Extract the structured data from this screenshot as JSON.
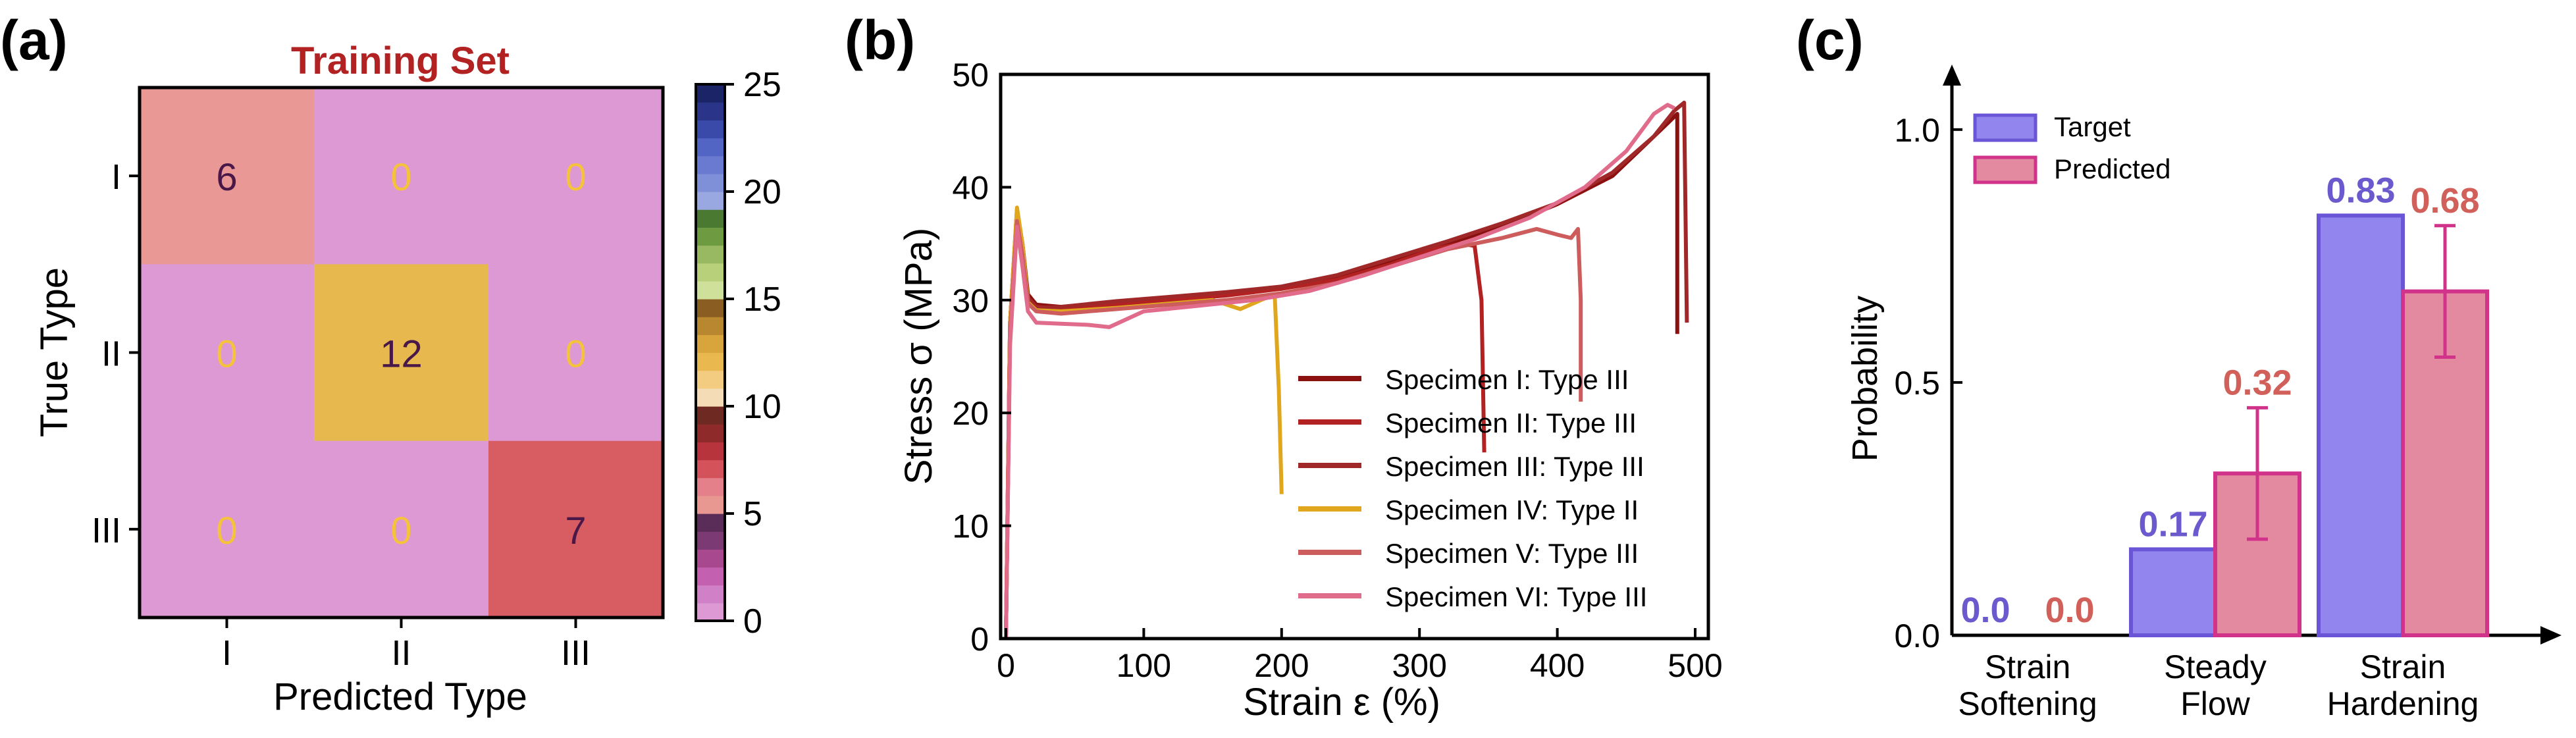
{
  "chart_data": [
    {
      "panel_label": "(a)",
      "type": "heatmap",
      "title": "Training Set",
      "xlabel": "Predicted Type",
      "ylabel": "True Type",
      "x_categories": [
        "I",
        "II",
        "III"
      ],
      "y_categories": [
        "I",
        "II",
        "III"
      ],
      "values": [
        [
          6,
          0,
          0
        ],
        [
          0,
          12,
          0
        ],
        [
          0,
          0,
          7
        ]
      ],
      "colorbar": {
        "range": [
          0,
          25
        ],
        "ticks": [
          "0",
          "5",
          "10",
          "15",
          "20",
          "25"
        ]
      },
      "cell_text_colors": {
        "light": "#f5c33b",
        "dark": "#4a1848"
      }
    },
    {
      "panel_label": "(b)",
      "type": "line",
      "xlabel": "Strain ε (%)",
      "ylabel": "Stress σ (MPa)",
      "xlim": [
        0,
        500
      ],
      "ylim": [
        0,
        50
      ],
      "xticks": [
        "0",
        "100",
        "200",
        "300",
        "400",
        "500"
      ],
      "yticks": [
        "0",
        "10",
        "20",
        "30",
        "40",
        "50"
      ],
      "legend_position": "lower-right",
      "series": [
        {
          "name": "Specimen I: Type III",
          "color": "#8b1010",
          "x": [
            0,
            3,
            8,
            12,
            16,
            22,
            40,
            80,
            120,
            160,
            200,
            240,
            280,
            320,
            360,
            400,
            440,
            470,
            487,
            487
          ],
          "y": [
            0,
            28,
            37.5,
            35,
            30.5,
            29.6,
            29.4,
            29.8,
            30.2,
            30.6,
            31,
            32,
            33.5,
            35,
            36.5,
            38.5,
            41,
            44.5,
            46.5,
            27
          ]
        },
        {
          "name": "Specimen II: Type III",
          "color": "#b22222",
          "x": [
            0,
            3,
            8,
            12,
            16,
            22,
            40,
            80,
            120,
            160,
            200,
            240,
            280,
            310,
            330,
            340,
            345,
            347
          ],
          "y": [
            0,
            28,
            37.8,
            34.5,
            30.2,
            29.4,
            29.2,
            29.6,
            30,
            30.4,
            31,
            31.8,
            33.2,
            34.5,
            35,
            34.8,
            30,
            16.5
          ]
        },
        {
          "name": "Specimen III: Type III",
          "color": "#a02828",
          "x": [
            0,
            3,
            8,
            12,
            16,
            22,
            40,
            80,
            120,
            160,
            200,
            240,
            280,
            320,
            360,
            400,
            440,
            470,
            485,
            492,
            494
          ],
          "y": [
            0,
            28,
            38,
            35,
            30.2,
            29.3,
            29.4,
            29.9,
            30.3,
            30.7,
            31.2,
            32.2,
            33.7,
            35.2,
            36.8,
            38.6,
            41.3,
            44.5,
            46.8,
            47.5,
            28
          ]
        },
        {
          "name": "Specimen IV: Type II",
          "color": "#e0a61e",
          "x": [
            0,
            3,
            8,
            12,
            16,
            22,
            40,
            80,
            120,
            150,
            170,
            185,
            195,
            198,
            200
          ],
          "y": [
            0,
            28,
            38.2,
            35,
            29.8,
            29.1,
            29,
            29.3,
            29.7,
            30,
            29.2,
            30,
            30.5,
            22,
            12.8
          ]
        },
        {
          "name": "Specimen V: Type III",
          "color": "#cd5c5c",
          "x": [
            0,
            3,
            8,
            12,
            16,
            22,
            40,
            80,
            120,
            160,
            200,
            240,
            280,
            320,
            360,
            385,
            400,
            410,
            415,
            417,
            417
          ],
          "y": [
            0,
            27,
            37,
            34,
            29.7,
            29,
            28.8,
            29.2,
            29.6,
            30,
            30.6,
            31.5,
            33,
            34.5,
            35.5,
            36.3,
            35.8,
            35.5,
            36.3,
            30,
            21
          ]
        },
        {
          "name": "Specimen VI: Type III",
          "color": "#e06b8a",
          "x": [
            0,
            3,
            8,
            12,
            16,
            22,
            40,
            60,
            75,
            100,
            140,
            180,
            220,
            260,
            300,
            340,
            380,
            420,
            450,
            470,
            480,
            485
          ],
          "y": [
            0,
            26,
            36.5,
            33,
            29,
            28,
            27.9,
            27.8,
            27.6,
            29,
            29.5,
            30,
            30.8,
            32.2,
            33.8,
            35.4,
            37.3,
            40,
            43.2,
            46.5,
            47.3,
            47
          ]
        }
      ]
    },
    {
      "panel_label": "(c)",
      "type": "bar",
      "ylabel": "Probability",
      "categories": [
        "Strain Softening",
        "Steady Flow",
        "Strain Hardening"
      ],
      "category_lines": [
        [
          "Strain",
          "Softening"
        ],
        [
          "Steady",
          "Flow"
        ],
        [
          "Strain",
          "Hardening"
        ]
      ],
      "ylim": [
        0,
        1.1
      ],
      "yticks": [
        "0.0",
        "0.5",
        "1.0"
      ],
      "legend_position": "top-left",
      "series": [
        {
          "name": "Target",
          "values": [
            0.0,
            0.17,
            0.83
          ],
          "labels": [
            "0.0",
            "0.17",
            "0.83"
          ],
          "fill": "#9285ee",
          "edge": "#6a55d6",
          "label_color": "#6a5acd"
        },
        {
          "name": "Predicted",
          "values": [
            0.0,
            0.32,
            0.68
          ],
          "labels": [
            "0.0",
            "0.32",
            "0.68"
          ],
          "errors": [
            0,
            0.13,
            0.13
          ],
          "fill": "#e48aa0",
          "edge": "#d1338a",
          "label_color": "#d2605a"
        }
      ]
    }
  ]
}
